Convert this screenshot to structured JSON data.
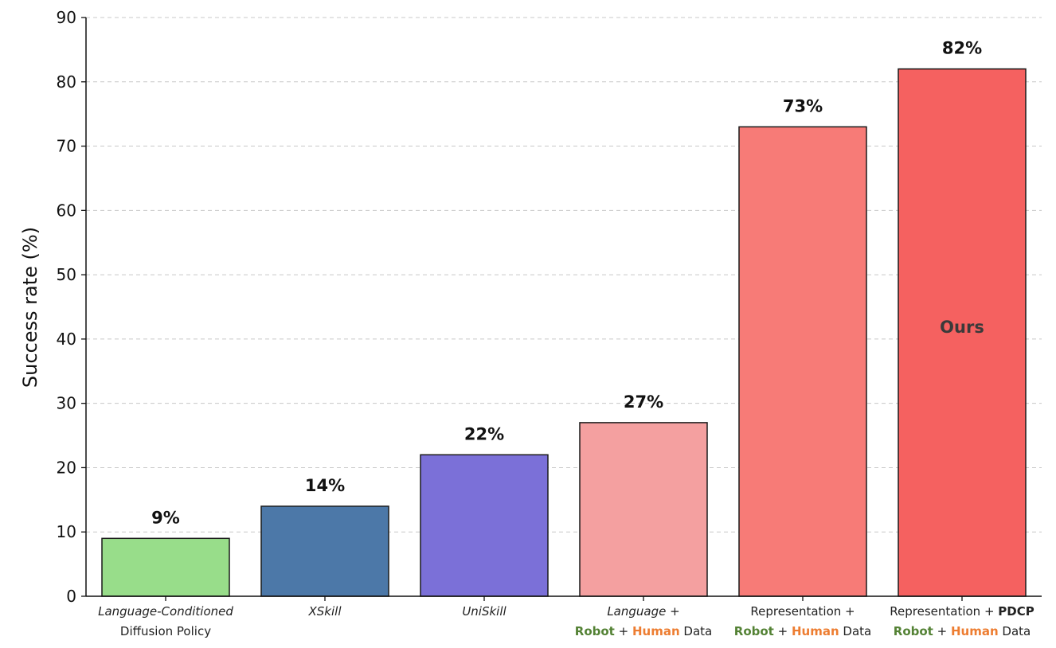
{
  "chart_data": {
    "type": "bar",
    "ylabel": "Success rate (%)",
    "ylim": [
      0,
      90
    ],
    "yticks": [
      "0",
      "10",
      "20",
      "30",
      "40",
      "50",
      "60",
      "70",
      "80",
      "90"
    ],
    "grid": "horizontal-dashed",
    "categories": [
      "Language-Conditioned Diffusion Policy",
      "XSkill",
      "UniSkill",
      "Language + Robot + Human Data",
      "Representation + Robot + Human Data",
      "Representation + PDCP Robot + Human Data"
    ],
    "values": [
      9,
      14,
      22,
      27,
      73,
      82
    ],
    "value_labels": [
      "9%",
      "14%",
      "22%",
      "27%",
      "73%",
      "82%"
    ],
    "colors": [
      "#98dd8a",
      "#4c78a8",
      "#7b70d8",
      "#f4a0a0",
      "#f77b77",
      "#f56160"
    ],
    "annotation": "Ours",
    "highlight_colors": {
      "robot": "#548235",
      "human": "#ed7d31"
    }
  },
  "category_labels": [
    {
      "line1": [
        {
          "t": "Language-Conditioned",
          "s": "it"
        }
      ],
      "line2": [
        {
          "t": "Diffusion Policy",
          "s": ""
        }
      ]
    },
    {
      "line1": [
        {
          "t": "XSkill",
          "s": "it"
        }
      ],
      "line2": []
    },
    {
      "line1": [
        {
          "t": "UniSkill",
          "s": "it"
        }
      ],
      "line2": []
    },
    {
      "line1": [
        {
          "t": "Language",
          "s": "it"
        },
        {
          "t": " +",
          "s": ""
        }
      ],
      "line2": [
        {
          "t": "Robot",
          "s": "green"
        },
        {
          "t": " + ",
          "s": ""
        },
        {
          "t": "Human",
          "s": "orange"
        },
        {
          "t": " Data",
          "s": ""
        }
      ]
    },
    {
      "line1": [
        {
          "t": "Representation +",
          "s": ""
        }
      ],
      "line2": [
        {
          "t": "Robot",
          "s": "green"
        },
        {
          "t": " + ",
          "s": ""
        },
        {
          "t": "Human",
          "s": "orange"
        },
        {
          "t": " Data",
          "s": ""
        }
      ]
    },
    {
      "line1": [
        {
          "t": "Representation + ",
          "s": ""
        },
        {
          "t": "PDCP",
          "s": "b"
        }
      ],
      "line2": [
        {
          "t": "Robot",
          "s": "green"
        },
        {
          "t": " + ",
          "s": ""
        },
        {
          "t": "Human",
          "s": "orange"
        },
        {
          "t": " Data",
          "s": ""
        }
      ]
    }
  ]
}
